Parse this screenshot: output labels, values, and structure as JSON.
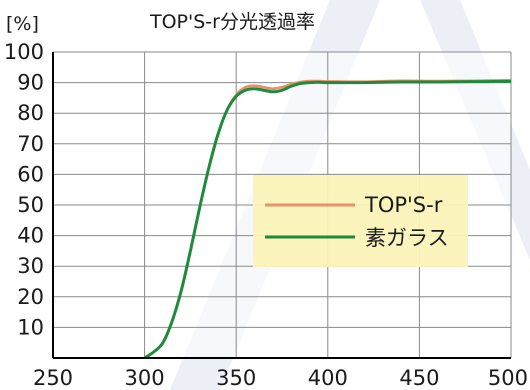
{
  "chart_data": {
    "type": "line",
    "title": "TOP'S-r分光透過率",
    "ylabel": "[%]",
    "xlabel": "",
    "xlim": [
      250,
      500
    ],
    "ylim": [
      0,
      100
    ],
    "x_ticks": [
      250,
      300,
      350,
      400,
      450,
      500
    ],
    "y_ticks": [
      10,
      20,
      30,
      40,
      50,
      60,
      70,
      80,
      90,
      100
    ],
    "grid": true,
    "legend_position": "right-middle",
    "series": [
      {
        "name": "TOP'S-r",
        "color": "#e8906a",
        "x": [
          300,
          305,
          310,
          315,
          320,
          325,
          330,
          335,
          340,
          345,
          350,
          355,
          360,
          365,
          370,
          375,
          380,
          385,
          390,
          395,
          400,
          420,
          440,
          460,
          480,
          500
        ],
        "y": [
          0,
          2,
          5,
          12,
          22,
          35,
          49,
          62,
          73,
          81,
          86,
          88.5,
          89,
          88.5,
          88,
          88.5,
          89.5,
          90.2,
          90.5,
          90.5,
          90.4,
          90.3,
          90.6,
          90.5,
          90.6,
          90.8
        ]
      },
      {
        "name": "素ガラス",
        "color": "#1f8a3c",
        "x": [
          300,
          305,
          310,
          315,
          320,
          325,
          330,
          335,
          340,
          345,
          350,
          355,
          360,
          365,
          370,
          375,
          380,
          385,
          390,
          395,
          400,
          420,
          440,
          460,
          480,
          500
        ],
        "y": [
          0,
          2,
          5,
          12,
          22,
          35,
          49,
          62,
          73,
          81,
          85.5,
          87.5,
          88,
          87.5,
          87,
          87.5,
          88.8,
          89.7,
          90,
          90.1,
          90,
          90,
          90.2,
          90.2,
          90.3,
          90.4
        ]
      }
    ]
  }
}
